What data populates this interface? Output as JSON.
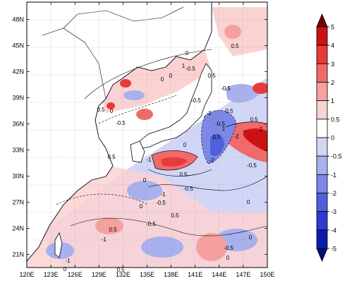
{
  "map": {
    "lat_ticks": [
      "48N",
      "45N",
      "42N",
      "39N",
      "36N",
      "33N",
      "30N",
      "27N",
      "24N",
      "21N"
    ],
    "lon_ticks": [
      "120E",
      "123E",
      "126E",
      "129E",
      "132E",
      "135E",
      "138E",
      "141E",
      "144E",
      "147E",
      "150E"
    ],
    "extent": {
      "lon_min": 120,
      "lon_max": 150,
      "lat_min": 19.5,
      "lat_max": 50
    }
  },
  "colorbar": {
    "labels": [
      "5",
      "4",
      "3",
      "2",
      "1",
      "0.5",
      "0",
      "-0.5",
      "-1",
      "-2",
      "-3",
      "-4",
      "-5"
    ],
    "colors": [
      "#750000",
      "#cc1111",
      "#e83a3a",
      "#f06a6a",
      "#f6a0a0",
      "#fbd2d2",
      "#ffffff",
      "#d2d6f6",
      "#a8b0ee",
      "#7c88e6",
      "#4f60dc",
      "#2a3cd2",
      "#0b1bb0",
      "#06107a"
    ]
  },
  "contour_labels": [
    "0.5",
    "0",
    "-0.5",
    "0.5",
    "0",
    "1",
    "0",
    "0.5",
    "-0.5",
    "0",
    "0.5",
    "-0.5",
    "-1",
    "-0.5",
    "-0.5",
    "-1",
    "0.5",
    "0",
    "1",
    "-2",
    "0.5",
    "2",
    "-2",
    "0.5",
    "-1",
    "0",
    "-0.5",
    "-1",
    "0",
    "0.5",
    "-0.5",
    "0",
    "0.5",
    "-0.5",
    "0",
    "0",
    "-1",
    "-0.5",
    "-0.5",
    "0.5",
    "0.5",
    "0"
  ]
}
